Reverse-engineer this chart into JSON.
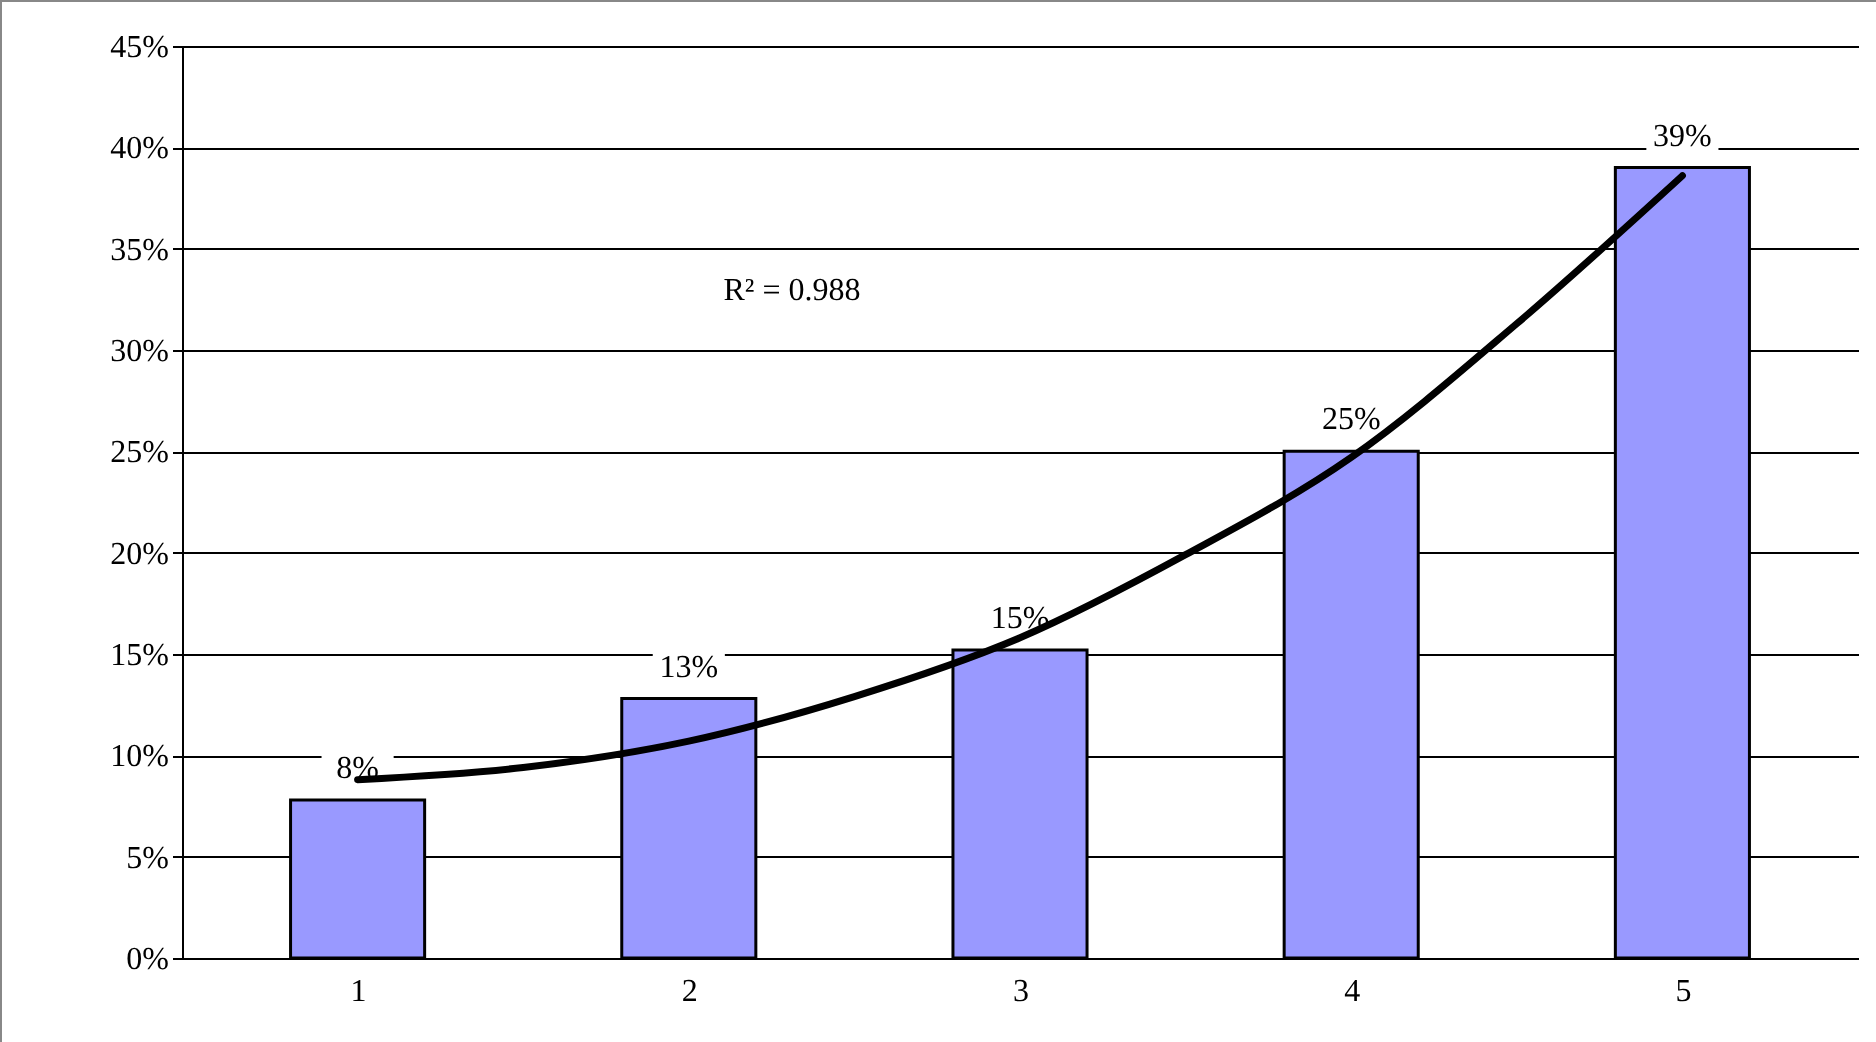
{
  "chart_data": {
    "type": "bar",
    "x": [
      1,
      2,
      3,
      4,
      5
    ],
    "xlim": [
      0.5,
      5.5
    ],
    "xticks": [
      1,
      2,
      3,
      4,
      5
    ],
    "ylim": [
      0,
      45
    ],
    "yticks": [
      {
        "value": 0,
        "label": "0%"
      },
      {
        "value": 5,
        "label": "5%"
      },
      {
        "value": 10,
        "label": "10%"
      },
      {
        "value": 15,
        "label": "15%"
      },
      {
        "value": 20,
        "label": "20%"
      },
      {
        "value": 25,
        "label": "25%"
      },
      {
        "value": 30,
        "label": "30%"
      },
      {
        "value": 35,
        "label": "35%"
      },
      {
        "value": 40,
        "label": "40%"
      },
      {
        "value": 45,
        "label": "45%"
      }
    ],
    "grid": "y",
    "series": [
      {
        "color": "#9999ff",
        "values": [
          7.8,
          12.8,
          15.2,
          25,
          39
        ],
        "value_labels": [
          "8%",
          "13%",
          "15%",
          "25%",
          "39%"
        ]
      },
      {
        "type": "line",
        "color": "#000000",
        "x": [
          1,
          1.5,
          2,
          2.5,
          3,
          3.5,
          4,
          4.5,
          5
        ],
        "values": [
          8.8,
          9.4,
          10.7,
          12.9,
          15.8,
          19.9,
          24.7,
          31.3,
          38.6
        ]
      }
    ],
    "annotations": [
      "R² = 0.988"
    ]
  }
}
